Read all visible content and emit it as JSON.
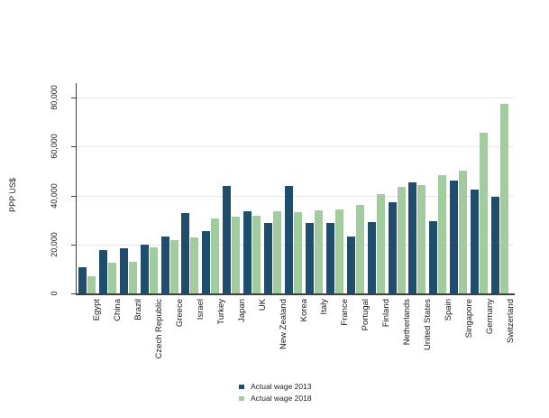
{
  "figure": {
    "y_axis_title": "PPP US$",
    "legend": {
      "items": [
        {
          "label": "Actual wage 2013",
          "color": "#1e4e6b"
        },
        {
          "label": "Actual wage 2018",
          "color": "#a2cb9e"
        }
      ]
    }
  },
  "chart_data": {
    "type": "bar",
    "title": "",
    "xlabel": "",
    "ylabel": "PPP US$",
    "ylim": [
      0,
      80000
    ],
    "yticks": [
      0,
      20000,
      40000,
      60000,
      80000
    ],
    "ytick_labels": [
      "0",
      "20,000",
      "40,000",
      "60,000",
      "80,000"
    ],
    "grid": true,
    "legend_position": "bottom-center",
    "categories": [
      "Egypt",
      "China",
      "Brazil",
      "Czech Republic",
      "Greece",
      "Israel",
      "Turkey",
      "Japan",
      "UK",
      "New Zealand",
      "Korea",
      "Italy",
      "France",
      "Portugal",
      "Finland",
      "Netherlands",
      "United States",
      "Spain",
      "Singapore",
      "Germany",
      "Switzerland"
    ],
    "series": [
      {
        "name": "Actual wage 2013",
        "color": "#1e4e6b",
        "values": [
          10600,
          17700,
          18500,
          20000,
          23300,
          32700,
          25500,
          43800,
          33500,
          28900,
          44000,
          28900,
          28900,
          23400,
          29100,
          37200,
          45300,
          29500,
          46000,
          42300,
          39500
        ]
      },
      {
        "name": "Actual wage 2018",
        "color": "#a2cb9e",
        "values": [
          6900,
          12700,
          13000,
          19000,
          21800,
          22700,
          30500,
          31400,
          31600,
          33500,
          33100,
          34000,
          34400,
          36200,
          40600,
          43500,
          44300,
          48400,
          50200,
          65600,
          77600
        ]
      }
    ]
  }
}
